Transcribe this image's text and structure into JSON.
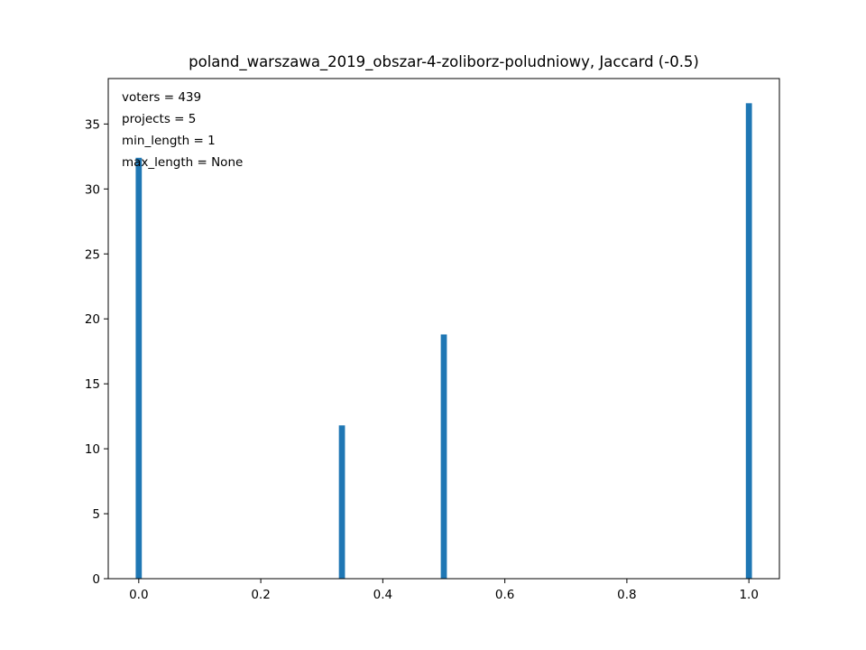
{
  "chart_data": {
    "type": "bar",
    "title": "poland_warszawa_2019_obszar-4-zoliborz-poludniowy, Jaccard (-0.5)",
    "xlabel": "",
    "ylabel": "",
    "xlim": [
      -0.05,
      1.05
    ],
    "ylim": [
      0,
      38.5
    ],
    "xticks": [
      0.0,
      0.2,
      0.4,
      0.6,
      0.8,
      1.0
    ],
    "xtick_labels": [
      "0.0",
      "0.2",
      "0.4",
      "0.6",
      "0.8",
      "1.0"
    ],
    "yticks": [
      0,
      5,
      10,
      15,
      20,
      25,
      30,
      35
    ],
    "ytick_labels": [
      "0",
      "5",
      "10",
      "15",
      "20",
      "25",
      "30",
      "35"
    ],
    "bar_color": "#1f77b4",
    "bar_width": 0.01,
    "x": [
      0.0,
      0.333,
      0.5,
      1.0
    ],
    "values": [
      32.4,
      11.8,
      18.8,
      36.6
    ],
    "annotations": [
      "voters = 439",
      "projects = 5",
      "min_length = 1",
      "max_length = None"
    ],
    "grid": false,
    "legend": "none"
  }
}
